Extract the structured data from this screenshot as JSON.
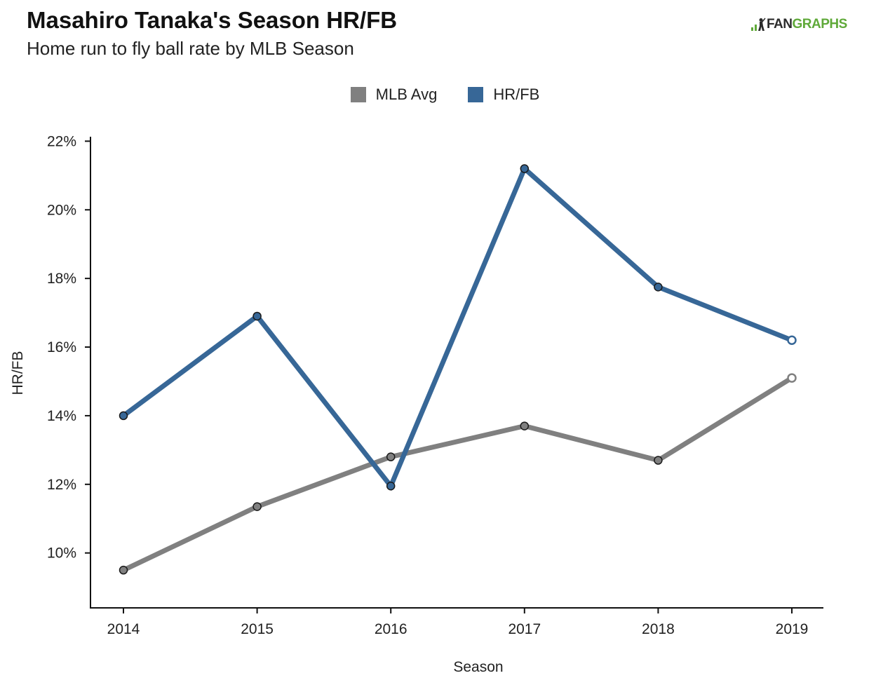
{
  "header": {
    "title": "Masahiro Tanaka's Season HR/FB",
    "subtitle": "Home run to fly ball rate by MLB Season"
  },
  "brand": {
    "part1": "FAN",
    "part2": "GRAPHS",
    "icon": "batter-silhouette-icon",
    "color_dark": "#2b2b2b",
    "color_green": "#5fa939"
  },
  "chart_data": {
    "type": "line",
    "title": "Masahiro Tanaka's Season HR/FB",
    "subtitle": "Home run to fly ball rate by MLB Season",
    "xlabel": "Season",
    "ylabel": "HR/FB",
    "categories": [
      "2014",
      "2015",
      "2016",
      "2017",
      "2018",
      "2019"
    ],
    "ylim": [
      8.4,
      22.6
    ],
    "yticks": [
      10,
      12,
      14,
      16,
      18,
      20,
      22
    ],
    "ytick_labels": [
      "10%",
      "12%",
      "14%",
      "16%",
      "18%",
      "20%",
      "22%"
    ],
    "grid": false,
    "legend_position": "top-center",
    "series": [
      {
        "name": "MLB Avg",
        "color": "#808080",
        "values": [
          9.5,
          11.35,
          12.8,
          13.7,
          12.7,
          15.1
        ]
      },
      {
        "name": "HR/FB",
        "color": "#376797",
        "values": [
          14.0,
          16.9,
          11.95,
          21.2,
          17.75,
          16.2
        ]
      }
    ],
    "last_point_hollow": true
  }
}
